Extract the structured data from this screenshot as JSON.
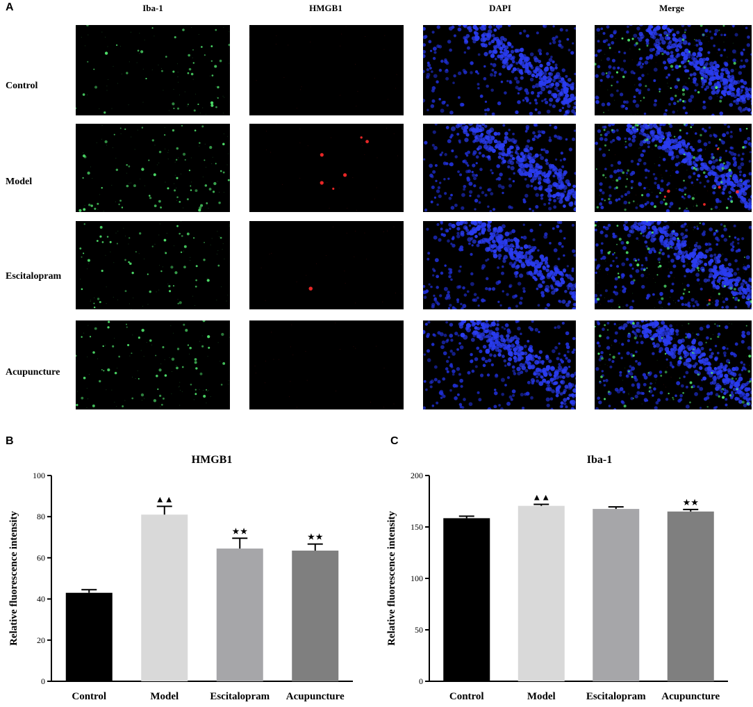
{
  "panels": {
    "a": "A",
    "b": "B",
    "c": "C"
  },
  "microscopy": {
    "columns": [
      "Iba-1",
      "HMGB1",
      "DAPI",
      "Merge"
    ],
    "rows": [
      "Control",
      "Model",
      "Escitalopram",
      "Acupuncture"
    ]
  },
  "chart_data": [
    {
      "type": "bar",
      "title": "HMGB1",
      "xlabel": "",
      "ylabel": "Relative  fluorescence intensity",
      "categories": [
        "Control",
        "Model",
        "Escitalopram",
        "Acupuncture"
      ],
      "values": [
        43,
        81,
        64.5,
        63.5
      ],
      "errors": [
        1.5,
        4,
        5,
        3.2
      ],
      "markers": [
        "",
        "▲▲",
        "★★",
        "★★"
      ],
      "colors": [
        "#000000",
        "#d9d9d9",
        "#a6a6a9",
        "#7f7f7f"
      ],
      "ylim": [
        0,
        100
      ],
      "yticks": [
        0,
        20,
        40,
        60,
        80,
        100
      ]
    },
    {
      "type": "bar",
      "title": "Iba-1",
      "xlabel": "",
      "ylabel": "Relative  fluorescence intensity",
      "categories": [
        "Control",
        "Model",
        "Escitalopram",
        "Acupuncture"
      ],
      "values": [
        158.5,
        170.5,
        167.5,
        165
      ],
      "errors": [
        2,
        1.5,
        2,
        2
      ],
      "markers": [
        "",
        "▲▲",
        "",
        "★★"
      ],
      "colors": [
        "#000000",
        "#d9d9d9",
        "#a6a6a9",
        "#7f7f7f"
      ],
      "ylim": [
        0,
        200
      ],
      "yticks": [
        0,
        50,
        100,
        150,
        200
      ]
    }
  ]
}
